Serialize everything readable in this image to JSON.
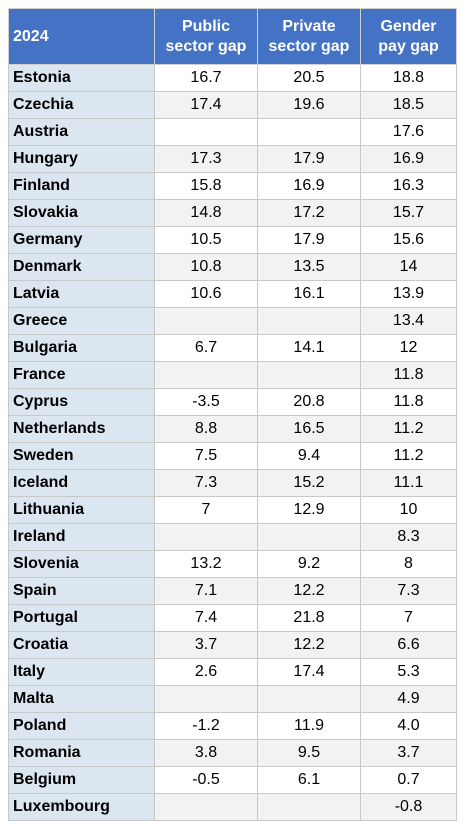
{
  "chart_data": {
    "type": "table",
    "columns": [
      "2024",
      "Public sector gap",
      "Private sector gap",
      "Gender pay gap"
    ],
    "header_lines": [
      [
        "2024"
      ],
      [
        "Public",
        "sector gap"
      ],
      [
        "Private",
        "sector gap"
      ],
      [
        "Gender",
        "pay gap"
      ]
    ],
    "rows": [
      [
        "Estonia",
        "16.7",
        "20.5",
        "18.8"
      ],
      [
        "Czechia",
        "17.4",
        "19.6",
        "18.5"
      ],
      [
        "Austria",
        "",
        "",
        "17.6"
      ],
      [
        "Hungary",
        "17.3",
        "17.9",
        "16.9"
      ],
      [
        "Finland",
        "15.8",
        "16.9",
        "16.3"
      ],
      [
        "Slovakia",
        "14.8",
        "17.2",
        "15.7"
      ],
      [
        "Germany",
        "10.5",
        "17.9",
        "15.6"
      ],
      [
        "Denmark",
        "10.8",
        "13.5",
        "14"
      ],
      [
        "Latvia",
        "10.6",
        "16.1",
        "13.9"
      ],
      [
        "Greece",
        "",
        "",
        "13.4"
      ],
      [
        "Bulgaria",
        "6.7",
        "14.1",
        "12"
      ],
      [
        "France",
        "",
        "",
        "11.8"
      ],
      [
        "Cyprus",
        "-3.5",
        "20.8",
        "11.8"
      ],
      [
        "Netherlands",
        "8.8",
        "16.5",
        "11.2"
      ],
      [
        "Sweden",
        "7.5",
        "9.4",
        "11.2"
      ],
      [
        "Iceland",
        "7.3",
        "15.2",
        "11.1"
      ],
      [
        "Lithuania",
        "7",
        "12.9",
        "10"
      ],
      [
        "Ireland",
        "",
        "",
        "8.3"
      ],
      [
        "Slovenia",
        "13.2",
        "9.2",
        "8"
      ],
      [
        "Spain",
        "7.1",
        "12.2",
        "7.3"
      ],
      [
        "Portugal",
        "7.4",
        "21.8",
        "7"
      ],
      [
        "Croatia",
        "3.7",
        "12.2",
        "6.6"
      ],
      [
        "Italy",
        "2.6",
        "17.4",
        "5.3"
      ],
      [
        "Malta",
        "",
        "",
        "4.9"
      ],
      [
        "Poland",
        "-1.2",
        "11.9",
        "4.0"
      ],
      [
        "Romania",
        "3.8",
        "9.5",
        "3.7"
      ],
      [
        "Belgium",
        "-0.5",
        "6.1",
        "0.7"
      ],
      [
        "Luxembourg",
        "",
        "",
        "-0.8"
      ]
    ]
  },
  "colors": {
    "header_bg": "#4472c4",
    "header_text": "#ffffff",
    "country_bg": "#dce6f1",
    "stripe_bg": "#f2f2f2"
  }
}
